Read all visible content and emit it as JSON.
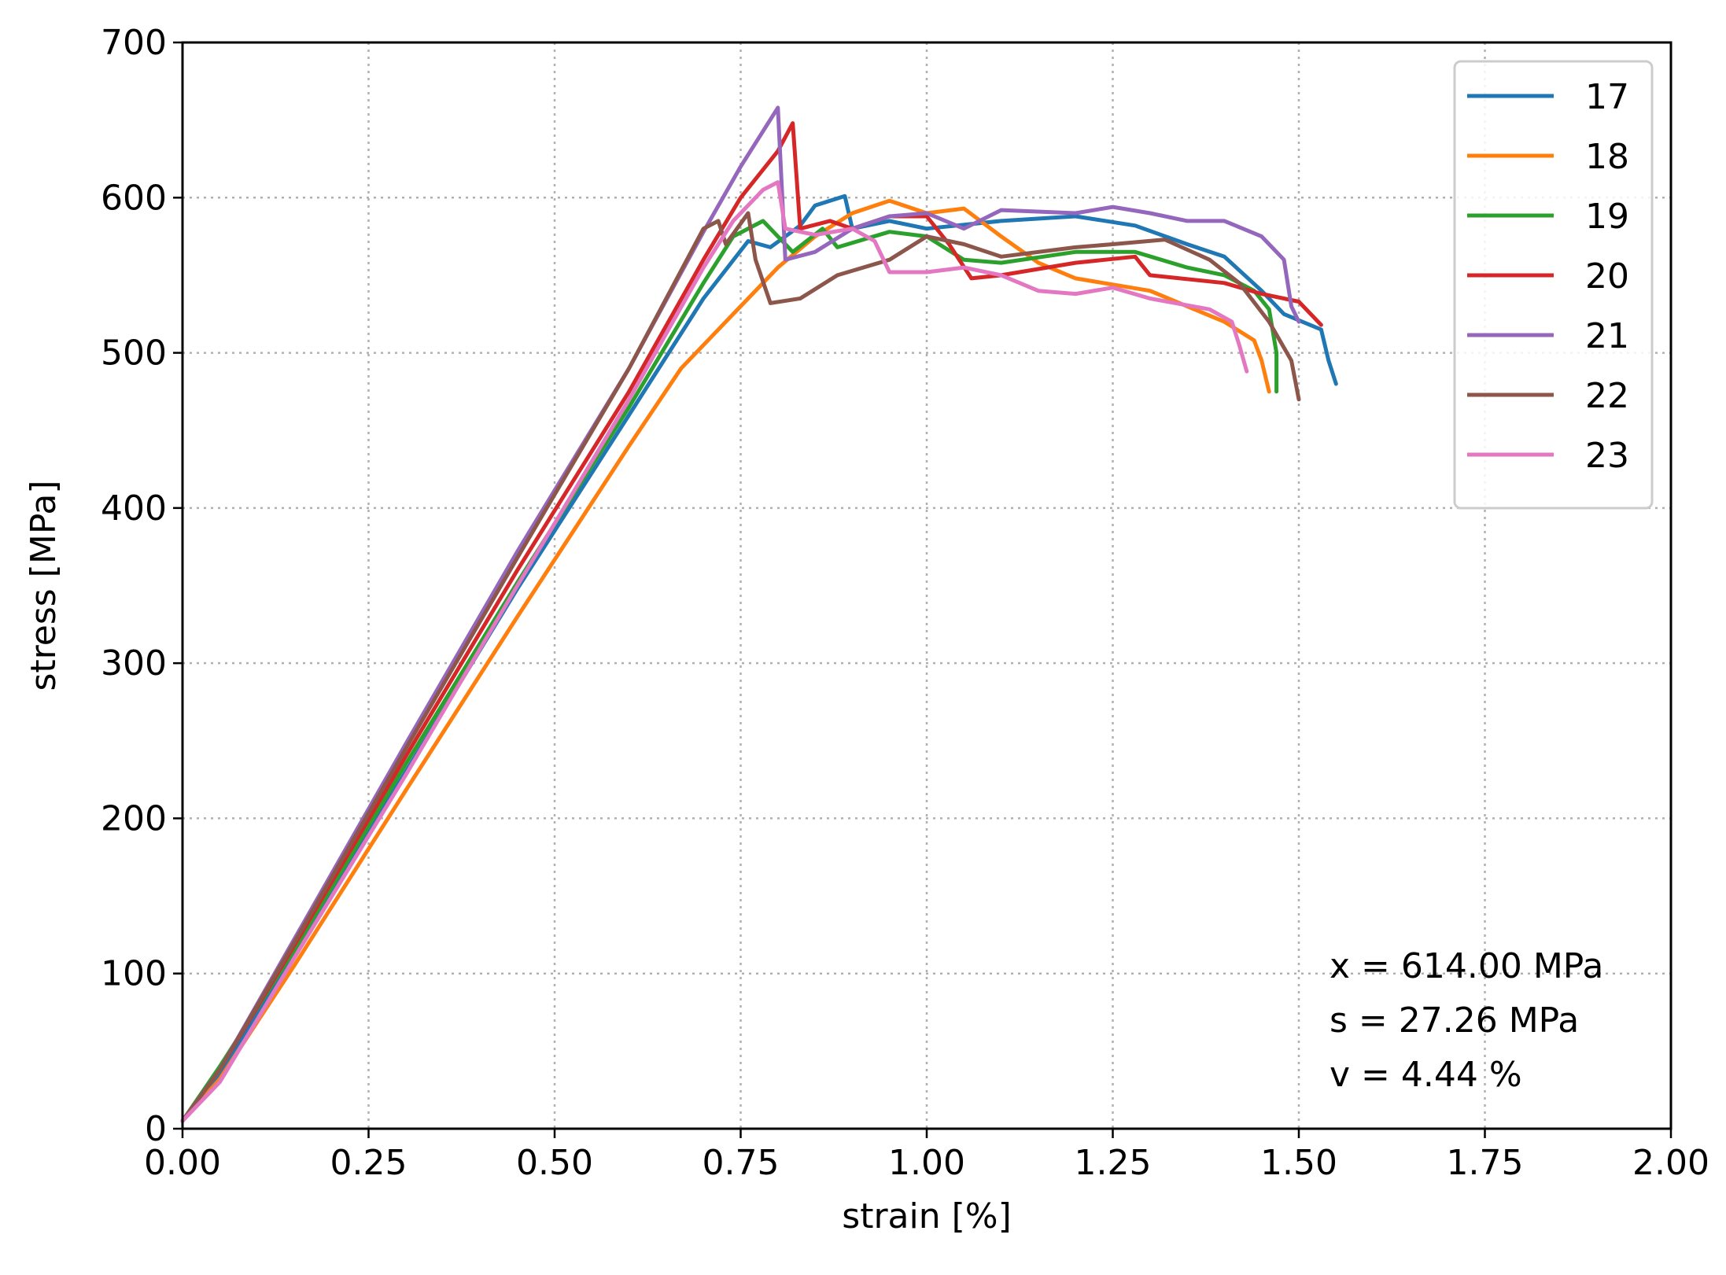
{
  "chart_data": {
    "type": "line",
    "title": "",
    "xlabel": "strain [%]",
    "ylabel": "stress [MPa]",
    "xlim": [
      0,
      2.0
    ],
    "ylim": [
      0,
      700
    ],
    "xticks": [
      "0.00",
      "0.25",
      "0.50",
      "0.75",
      "1.00",
      "1.25",
      "1.50",
      "1.75",
      "2.00"
    ],
    "yticks": [
      "0",
      "100",
      "200",
      "300",
      "400",
      "500",
      "600",
      "700"
    ],
    "grid": true,
    "legend_position": "top-right",
    "stats": [
      "x = 614.00 MPa",
      "s = 27.26 MPa",
      "v = 4.44 %"
    ],
    "series": [
      {
        "name": "17",
        "color": "#1f77b4",
        "points": [
          [
            0,
            5
          ],
          [
            0.05,
            36
          ],
          [
            0.15,
            112
          ],
          [
            0.3,
            230
          ],
          [
            0.45,
            348
          ],
          [
            0.6,
            460
          ],
          [
            0.7,
            535
          ],
          [
            0.76,
            572
          ],
          [
            0.79,
            568
          ],
          [
            0.83,
            582
          ],
          [
            0.85,
            595
          ],
          [
            0.89,
            601
          ],
          [
            0.9,
            580
          ],
          [
            0.95,
            585
          ],
          [
            1.0,
            580
          ],
          [
            1.1,
            585
          ],
          [
            1.2,
            588
          ],
          [
            1.28,
            582
          ],
          [
            1.35,
            570
          ],
          [
            1.4,
            562
          ],
          [
            1.45,
            540
          ],
          [
            1.48,
            525
          ],
          [
            1.53,
            515
          ],
          [
            1.54,
            495
          ],
          [
            1.55,
            480
          ]
        ]
      },
      {
        "name": "18",
        "color": "#ff7f0e",
        "points": [
          [
            0,
            5
          ],
          [
            0.05,
            32
          ],
          [
            0.15,
            105
          ],
          [
            0.3,
            218
          ],
          [
            0.45,
            330
          ],
          [
            0.6,
            440
          ],
          [
            0.67,
            490
          ],
          [
            0.7,
            505
          ],
          [
            0.75,
            530
          ],
          [
            0.8,
            555
          ],
          [
            0.85,
            575
          ],
          [
            0.9,
            590
          ],
          [
            0.95,
            598
          ],
          [
            1.0,
            590
          ],
          [
            1.05,
            593
          ],
          [
            1.1,
            575
          ],
          [
            1.15,
            558
          ],
          [
            1.2,
            548
          ],
          [
            1.3,
            540
          ],
          [
            1.35,
            530
          ],
          [
            1.4,
            520
          ],
          [
            1.44,
            508
          ],
          [
            1.45,
            495
          ],
          [
            1.46,
            475
          ]
        ]
      },
      {
        "name": "19",
        "color": "#2ca02c",
        "points": [
          [
            0,
            5
          ],
          [
            0.05,
            40
          ],
          [
            0.15,
            115
          ],
          [
            0.3,
            235
          ],
          [
            0.45,
            352
          ],
          [
            0.6,
            465
          ],
          [
            0.7,
            545
          ],
          [
            0.74,
            575
          ],
          [
            0.78,
            585
          ],
          [
            0.82,
            565
          ],
          [
            0.86,
            580
          ],
          [
            0.88,
            568
          ],
          [
            0.95,
            578
          ],
          [
            1.0,
            575
          ],
          [
            1.05,
            560
          ],
          [
            1.1,
            558
          ],
          [
            1.2,
            565
          ],
          [
            1.28,
            565
          ],
          [
            1.35,
            555
          ],
          [
            1.4,
            550
          ],
          [
            1.44,
            540
          ],
          [
            1.46,
            528
          ],
          [
            1.47,
            500
          ],
          [
            1.47,
            475
          ]
        ]
      },
      {
        "name": "20",
        "color": "#d62728",
        "points": [
          [
            0,
            5
          ],
          [
            0.05,
            38
          ],
          [
            0.15,
            118
          ],
          [
            0.3,
            240
          ],
          [
            0.45,
            360
          ],
          [
            0.6,
            475
          ],
          [
            0.7,
            560
          ],
          [
            0.75,
            600
          ],
          [
            0.8,
            630
          ],
          [
            0.82,
            648
          ],
          [
            0.83,
            580
          ],
          [
            0.87,
            585
          ],
          [
            0.9,
            580
          ],
          [
            0.95,
            588
          ],
          [
            1.0,
            588
          ],
          [
            1.03,
            570
          ],
          [
            1.06,
            548
          ],
          [
            1.1,
            550
          ],
          [
            1.2,
            558
          ],
          [
            1.28,
            562
          ],
          [
            1.3,
            550
          ],
          [
            1.4,
            545
          ],
          [
            1.45,
            538
          ],
          [
            1.5,
            533
          ],
          [
            1.53,
            518
          ]
        ]
      },
      {
        "name": "21",
        "color": "#9467bd",
        "points": [
          [
            0,
            5
          ],
          [
            0.05,
            38
          ],
          [
            0.15,
            122
          ],
          [
            0.3,
            248
          ],
          [
            0.45,
            372
          ],
          [
            0.6,
            490
          ],
          [
            0.7,
            578
          ],
          [
            0.75,
            620
          ],
          [
            0.8,
            658
          ],
          [
            0.81,
            560
          ],
          [
            0.85,
            565
          ],
          [
            0.9,
            580
          ],
          [
            0.95,
            588
          ],
          [
            1.0,
            590
          ],
          [
            1.05,
            580
          ],
          [
            1.1,
            592
          ],
          [
            1.2,
            590
          ],
          [
            1.25,
            594
          ],
          [
            1.3,
            590
          ],
          [
            1.35,
            585
          ],
          [
            1.4,
            585
          ],
          [
            1.45,
            575
          ],
          [
            1.48,
            560
          ],
          [
            1.49,
            530
          ],
          [
            1.5,
            520
          ]
        ]
      },
      {
        "name": "22",
        "color": "#8c564b",
        "points": [
          [
            0,
            5
          ],
          [
            0.05,
            38
          ],
          [
            0.15,
            120
          ],
          [
            0.3,
            245
          ],
          [
            0.45,
            368
          ],
          [
            0.6,
            490
          ],
          [
            0.7,
            580
          ],
          [
            0.72,
            585
          ],
          [
            0.73,
            570
          ],
          [
            0.76,
            590
          ],
          [
            0.77,
            560
          ],
          [
            0.79,
            532
          ],
          [
            0.83,
            535
          ],
          [
            0.88,
            550
          ],
          [
            0.95,
            560
          ],
          [
            1.0,
            575
          ],
          [
            1.05,
            570
          ],
          [
            1.1,
            562
          ],
          [
            1.2,
            568
          ],
          [
            1.25,
            570
          ],
          [
            1.32,
            573
          ],
          [
            1.38,
            560
          ],
          [
            1.42,
            545
          ],
          [
            1.46,
            520
          ],
          [
            1.49,
            495
          ],
          [
            1.5,
            470
          ]
        ]
      },
      {
        "name": "23",
        "color": "#e377c2",
        "points": [
          [
            0,
            5
          ],
          [
            0.05,
            30
          ],
          [
            0.15,
            110
          ],
          [
            0.3,
            228
          ],
          [
            0.45,
            350
          ],
          [
            0.6,
            470
          ],
          [
            0.7,
            555
          ],
          [
            0.74,
            585
          ],
          [
            0.78,
            605
          ],
          [
            0.8,
            610
          ],
          [
            0.81,
            580
          ],
          [
            0.85,
            576
          ],
          [
            0.9,
            580
          ],
          [
            0.93,
            572
          ],
          [
            0.95,
            552
          ],
          [
            1.0,
            552
          ],
          [
            1.05,
            555
          ],
          [
            1.1,
            550
          ],
          [
            1.15,
            540
          ],
          [
            1.2,
            538
          ],
          [
            1.25,
            542
          ],
          [
            1.3,
            535
          ],
          [
            1.38,
            528
          ],
          [
            1.41,
            520
          ],
          [
            1.42,
            505
          ],
          [
            1.43,
            488
          ]
        ]
      }
    ]
  }
}
